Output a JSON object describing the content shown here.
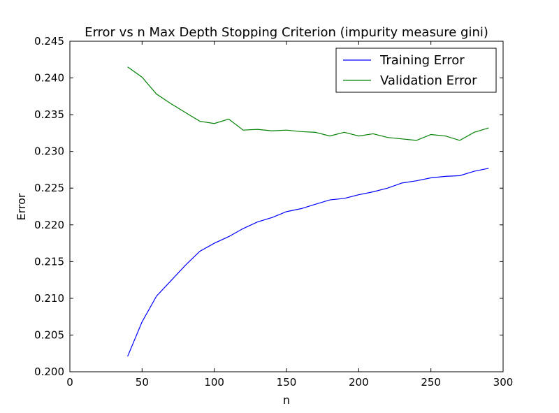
{
  "chart_data": {
    "type": "line",
    "title": "Error vs n Max Depth Stopping Criterion  (impurity measure gini)",
    "xlabel": "n",
    "ylabel": "Error",
    "xlim": [
      0,
      300
    ],
    "ylim": [
      0.2,
      0.245
    ],
    "x_ticks": [
      "0",
      "50",
      "100",
      "150",
      "200",
      "250",
      "300"
    ],
    "y_ticks": [
      "0.200",
      "0.205",
      "0.210",
      "0.215",
      "0.220",
      "0.225",
      "0.230",
      "0.235",
      "0.240",
      "0.245"
    ],
    "grid": false,
    "legend_position": "top-right",
    "x": [
      40,
      50,
      60,
      70,
      80,
      90,
      100,
      110,
      120,
      130,
      140,
      150,
      160,
      170,
      180,
      190,
      200,
      210,
      220,
      230,
      240,
      250,
      260,
      270,
      280,
      290
    ],
    "series": [
      {
        "name": "Training Error",
        "color": "#0000ff",
        "values": [
          0.2021,
          0.2068,
          0.2103,
          0.2124,
          0.2145,
          0.2164,
          0.2175,
          0.2184,
          0.2195,
          0.2204,
          0.221,
          0.2218,
          0.2222,
          0.2228,
          0.2234,
          0.2236,
          0.2241,
          0.2245,
          0.225,
          0.2257,
          0.226,
          0.2264,
          0.2266,
          0.2267,
          0.2273,
          0.2277
        ]
      },
      {
        "name": "Validation Error",
        "color": "#008000",
        "values": [
          0.2415,
          0.2401,
          0.2378,
          0.2365,
          0.2353,
          0.2341,
          0.2338,
          0.2344,
          0.2329,
          0.233,
          0.2328,
          0.2329,
          0.2327,
          0.2326,
          0.2321,
          0.2326,
          0.2321,
          0.2324,
          0.2319,
          0.2317,
          0.2315,
          0.2323,
          0.2321,
          0.2315,
          0.2326,
          0.2332
        ]
      }
    ]
  }
}
